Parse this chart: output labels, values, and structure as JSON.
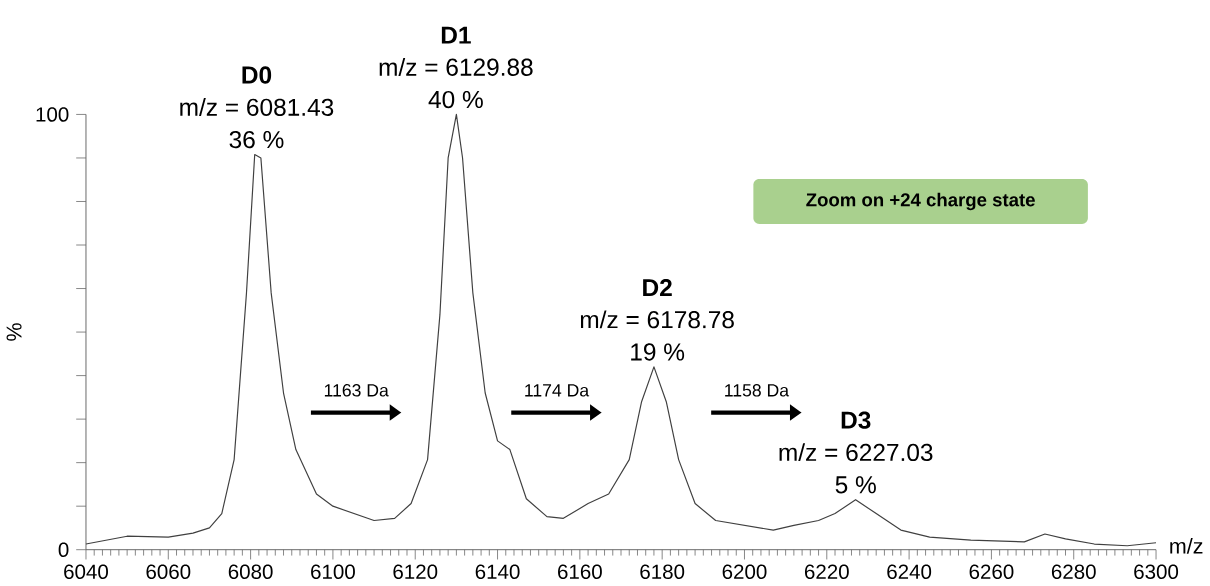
{
  "chart_data": {
    "type": "line",
    "xlabel": "m/z",
    "ylabel": "%",
    "color": "#404040",
    "x": [
      6040,
      6050,
      6060,
      6066,
      6070,
      6073,
      6076,
      6079,
      6081,
      6082.5,
      6085,
      6088,
      6091,
      6096,
      6100,
      6110,
      6115,
      6119,
      6123,
      6126,
      6128,
      6130,
      6131.5,
      6134,
      6137,
      6140,
      6143,
      6147,
      6152,
      6156,
      6162,
      6167,
      6172,
      6175,
      6178,
      6181,
      6184,
      6188,
      6193,
      6200,
      6207,
      6212,
      6218,
      6222,
      6227,
      6232,
      6238,
      6245,
      6255,
      6268,
      6273,
      6278,
      6285,
      6293,
      6300
    ],
    "values": [
      1.3,
      3.1,
      2.9,
      3.8,
      5,
      8.3,
      20.7,
      59,
      90.8,
      90,
      59,
      36,
      23,
      12.8,
      10,
      6.7,
      7.2,
      10.6,
      20.7,
      54,
      90,
      100,
      90,
      59,
      36,
      25,
      23,
      11.7,
      7.6,
      7.2,
      10.6,
      12.8,
      20.7,
      34,
      42,
      34,
      20.7,
      10.6,
      6.7,
      5.6,
      4.5,
      5.6,
      6.7,
      8.3,
      11.5,
      8.3,
      4.5,
      2.9,
      2.2,
      1.8,
      3.6,
      2.5,
      1.3,
      0.9,
      1.6
    ],
    "xlim": [
      6040,
      6300
    ],
    "ylim": [
      0,
      100
    ],
    "xticks": [
      6040,
      6060,
      6080,
      6100,
      6120,
      6140,
      6160,
      6180,
      6200,
      6220,
      6240,
      6260,
      6280,
      6300
    ],
    "yticks": [
      0,
      {
        "value": 10,
        "label": null
      },
      {
        "value": 20,
        "label": null
      },
      {
        "value": 30,
        "label": null
      },
      {
        "value": 40,
        "label": null
      },
      {
        "value": 50,
        "label": null
      },
      {
        "value": 60,
        "label": null
      },
      {
        "value": 70,
        "label": null
      },
      {
        "value": 80,
        "label": null
      },
      {
        "value": 90,
        "label": null
      },
      100
    ],
    "annotations": [
      {
        "text": "D0",
        "x": 6081.43,
        "y": 90.8
      },
      {
        "text": "m/z = 6081.43",
        "x": 6081.43,
        "y": 90.8
      },
      {
        "text": "36 %",
        "x": 6081.43,
        "y": 90.8
      },
      {
        "text": "D1",
        "x": 6129.88,
        "y": 100
      },
      {
        "text": "m/z = 6129.88",
        "x": 6129.88,
        "y": 100
      },
      {
        "text": "40 %",
        "x": 6129.88,
        "y": 100
      },
      {
        "text": "D2",
        "x": 6178.78,
        "y": 42
      },
      {
        "text": "m/z = 6178.78",
        "x": 6178.78,
        "y": 42
      },
      {
        "text": "19 %",
        "x": 6178.78,
        "y": 42
      },
      {
        "text": "D3",
        "x": 6227.03,
        "y": 11.5
      },
      {
        "text": "m/z = 6227.03",
        "x": 6227.03,
        "y": 11.5
      },
      {
        "text": "5 %",
        "x": 6227.03,
        "y": 11.5
      },
      "1163 Da",
      "1174 Da",
      "1158 Da",
      "Zoom on +24 charge state"
    ]
  }
}
